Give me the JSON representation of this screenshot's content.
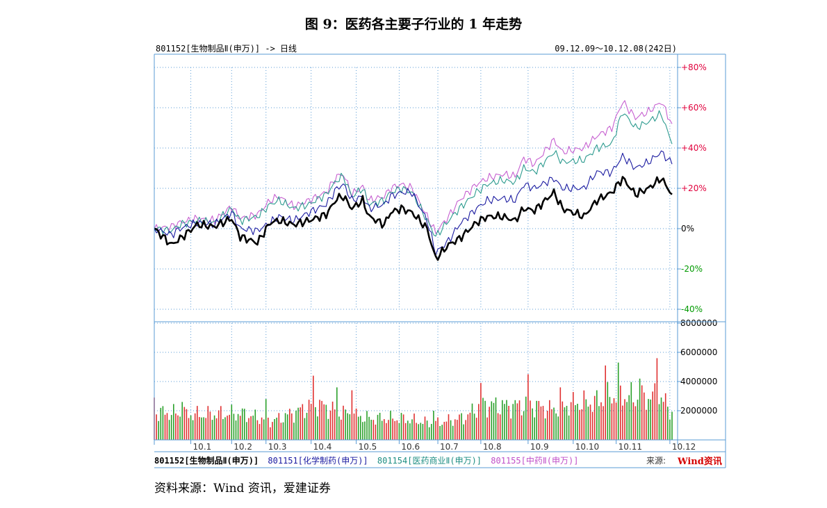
{
  "title": "图 9：医药各主要子行业的 1 年走势",
  "header": {
    "left": "801152[生物制品Ⅱ(申万)] -> 日线",
    "right": "09.12.09～10.12.08(242日)"
  },
  "legend": {
    "item1": "801152[生物制品Ⅱ(申万)]",
    "item2": "801151[化学制药(申万)]",
    "item3": "801154[医药商业Ⅱ(申万)]",
    "item4": "801155[中药Ⅱ(申万)]"
  },
  "source_label": "来源:",
  "wind_logo": "Wind资讯",
  "source_note": "资料来源：Wind 资讯，爱建证券",
  "colors": {
    "bio": "#000000",
    "chem": "#1a1aa0",
    "commerce": "#2b9a8e",
    "tcm": "#c65fd0",
    "grid": "#5a9bd5",
    "axis": "#5a9bd5",
    "up_bar": "#e03030",
    "down_bar": "#2aa02a",
    "tick_pos": "#e0003c",
    "tick_neg": "#009900"
  },
  "chart_data": [
    {
      "type": "line",
      "title": "",
      "xlabel": "",
      "ylabel": "",
      "ylim": [
        -40,
        80
      ],
      "y_ticks": [
        "+80%",
        "+60%",
        "+40%",
        "+20%",
        "0%",
        "-20%",
        "-40%"
      ],
      "x_ticks": [
        "10.1",
        "10.2",
        "10.3",
        "10.4",
        "10.5",
        "10.6",
        "10.7",
        "10.8",
        "10.9",
        "10.10",
        "10.11",
        "10.12"
      ],
      "x_tick_days": [
        17,
        36,
        52,
        73,
        94,
        114,
        132,
        152,
        174,
        195,
        215,
        240
      ],
      "grid": true,
      "legend": "bottom",
      "series": [
        {
          "name": "801152[生物制品Ⅱ(申万)]",
          "x": [
            0,
            8,
            12,
            20,
            28,
            36,
            40,
            48,
            54,
            58,
            65,
            72,
            80,
            85,
            88,
            92,
            97,
            100,
            107,
            110,
            115,
            120,
            127,
            131,
            137,
            142,
            150,
            155,
            162,
            168,
            172,
            177,
            186,
            190,
            200,
            206,
            213,
            218,
            224,
            230,
            236,
            241
          ],
          "values": [
            0,
            -8,
            -5,
            2,
            1,
            5,
            -4,
            -7,
            3,
            4,
            2,
            4,
            7,
            15,
            16,
            10,
            14,
            6,
            2,
            8,
            10,
            8,
            0,
            -15,
            -8,
            -5,
            3,
            6,
            6,
            4,
            10,
            9,
            18,
            10,
            6,
            14,
            18,
            25,
            17,
            20,
            25,
            17
          ]
        },
        {
          "name": "801151[化学制药(申万)]",
          "x": [
            0,
            8,
            12,
            20,
            28,
            36,
            40,
            48,
            54,
            58,
            65,
            72,
            80,
            85,
            88,
            92,
            97,
            100,
            107,
            110,
            115,
            120,
            127,
            131,
            137,
            142,
            150,
            155,
            162,
            168,
            172,
            177,
            186,
            190,
            200,
            206,
            213,
            218,
            224,
            230,
            236,
            241
          ],
          "values": [
            0,
            -3,
            0,
            3,
            2,
            8,
            0,
            -1,
            3,
            6,
            4,
            8,
            12,
            20,
            22,
            14,
            16,
            10,
            12,
            16,
            18,
            18,
            4,
            -12,
            -6,
            2,
            10,
            14,
            15,
            14,
            22,
            20,
            25,
            20,
            20,
            28,
            28,
            36,
            30,
            33,
            38,
            32
          ]
        },
        {
          "name": "801154[医药商业Ⅱ(申万)]",
          "x": [
            0,
            8,
            12,
            20,
            28,
            36,
            40,
            48,
            54,
            58,
            65,
            72,
            80,
            85,
            88,
            92,
            97,
            100,
            107,
            110,
            115,
            120,
            127,
            131,
            137,
            142,
            150,
            155,
            162,
            168,
            172,
            177,
            186,
            190,
            200,
            206,
            213,
            218,
            224,
            230,
            236,
            241
          ],
          "values": [
            0,
            -1,
            2,
            4,
            3,
            10,
            4,
            6,
            12,
            14,
            10,
            12,
            17,
            24,
            26,
            16,
            20,
            12,
            14,
            18,
            20,
            18,
            4,
            -4,
            4,
            10,
            18,
            22,
            24,
            23,
            30,
            28,
            38,
            33,
            34,
            40,
            42,
            58,
            50,
            53,
            57,
            42
          ]
        },
        {
          "name": "801155[中药Ⅱ(申万)]",
          "x": [
            0,
            8,
            12,
            20,
            28,
            36,
            40,
            48,
            54,
            58,
            65,
            72,
            80,
            85,
            88,
            92,
            97,
            100,
            107,
            110,
            115,
            120,
            127,
            131,
            137,
            142,
            150,
            155,
            162,
            168,
            172,
            177,
            186,
            190,
            200,
            206,
            213,
            218,
            224,
            230,
            236,
            241
          ],
          "values": [
            0,
            1,
            3,
            5,
            4,
            11,
            5,
            7,
            14,
            16,
            11,
            14,
            18,
            26,
            27,
            17,
            21,
            14,
            16,
            20,
            22,
            20,
            6,
            -2,
            6,
            14,
            22,
            25,
            27,
            26,
            35,
            32,
            44,
            38,
            40,
            46,
            50,
            63,
            55,
            58,
            63,
            52
          ]
        }
      ]
    },
    {
      "type": "bar",
      "title": "",
      "xlabel": "",
      "ylabel": "",
      "ylim": [
        0,
        8000000
      ],
      "y_ticks": [
        "8000000",
        "6000000",
        "4000000",
        "2000000"
      ],
      "volume_profile": {
        "x": [
          0,
          20,
          40,
          55,
          70,
          75,
          85,
          100,
          115,
          130,
          145,
          152,
          165,
          175,
          185,
          195,
          205,
          215,
          225,
          235,
          241
        ],
        "values": [
          2200000,
          2000000,
          2100000,
          1500000,
          2500000,
          2900000,
          2300000,
          1700000,
          1700000,
          1300000,
          1800000,
          2800000,
          2700000,
          2800000,
          2400000,
          2900000,
          3000000,
          3600000,
          3300000,
          3500000,
          2200000
        ]
      },
      "spikes": {
        "x": [
          0,
          13,
          52,
          74,
          85,
          92,
          130,
          152,
          174,
          189,
          210,
          216,
          226,
          234
        ],
        "values": [
          2900000,
          2600000,
          2800000,
          4400000,
          3600000,
          3400000,
          2000000,
          3900000,
          4500000,
          3600000,
          5100000,
          5300000,
          4200000,
          5600000
        ]
      }
    }
  ]
}
